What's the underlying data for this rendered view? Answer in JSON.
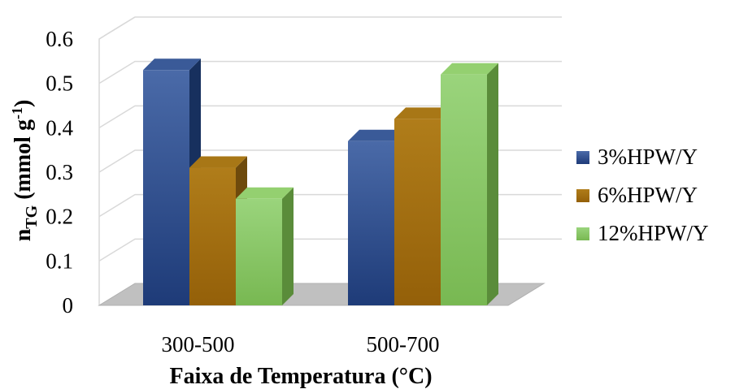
{
  "chart_data": {
    "type": "bar",
    "style": "3d-clustered-column",
    "categories": [
      "300-500",
      "500-700"
    ],
    "series": [
      {
        "name": "3%HPW/Y",
        "values": [
          0.53,
          0.37
        ],
        "color": "#2b4a86"
      },
      {
        "name": "6%HPW/Y",
        "values": [
          0.31,
          0.42
        ],
        "color": "#9a6a12"
      },
      {
        "name": "12%HPW/Y",
        "values": [
          0.24,
          0.52
        ],
        "color": "#86c462"
      }
    ],
    "xlabel": "Faixa de Temperatura (°C)",
    "ylabel": {
      "main": "n",
      "sub": "TG",
      "unit_open": " (mmol g",
      "sup": "-1",
      "unit_close": ")"
    },
    "ylim": [
      0,
      0.6
    ],
    "yticks": [
      "0",
      "0.1",
      "0.2",
      "0.3",
      "0.4",
      "0.5",
      "0.6"
    ],
    "grid": true,
    "legend": "right"
  }
}
